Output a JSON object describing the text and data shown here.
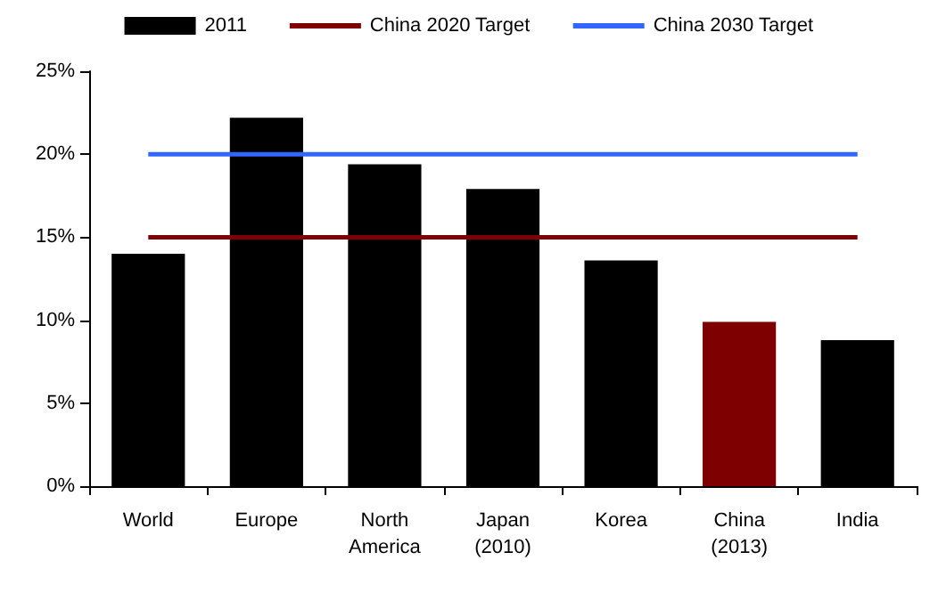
{
  "chart_data": {
    "type": "bar",
    "categories": [
      "World",
      "Europe",
      "North\nAmerica",
      "Japan\n(2010)",
      "Korea",
      "China\n(2013)",
      "India"
    ],
    "series": [
      {
        "name": "2011",
        "colors": [
          "#000000",
          "#000000",
          "#000000",
          "#000000",
          "#000000",
          "#7f0000",
          "#000000"
        ],
        "color": "#000000",
        "values": [
          14.0,
          22.2,
          19.4,
          17.9,
          13.6,
          9.9,
          8.8
        ]
      },
      {
        "name": "China 2020 Target",
        "type": "line",
        "color": "#7f0000",
        "values": [
          15,
          15,
          15,
          15,
          15,
          15,
          15
        ]
      },
      {
        "name": "China 2030 Target",
        "type": "line",
        "color": "#3366ff",
        "values": [
          20,
          20,
          20,
          20,
          20,
          20,
          20
        ]
      }
    ],
    "ylim": [
      0,
      25
    ],
    "yticks": [
      {
        "value": 0,
        "label": "0%"
      },
      {
        "value": 5,
        "label": "5%"
      },
      {
        "value": 10,
        "label": "10%"
      },
      {
        "value": 15,
        "label": "15%"
      },
      {
        "value": 20,
        "label": "20%"
      },
      {
        "value": 25,
        "label": "25%"
      }
    ],
    "grid": false,
    "legend": "top",
    "marker": "none"
  }
}
